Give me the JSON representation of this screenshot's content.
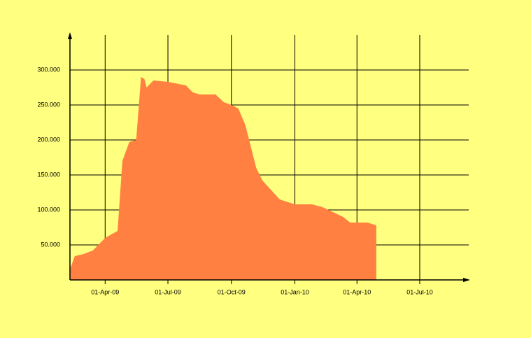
{
  "chart_data": {
    "type": "area",
    "color": "#ff8040",
    "grid": true,
    "x": [
      "2009-02-09",
      "2009-02-16",
      "2009-03-01",
      "2009-03-14",
      "2009-03-22",
      "2009-04-01",
      "2009-04-19",
      "2009-04-26",
      "2009-05-06",
      "2009-05-16",
      "2009-05-23",
      "2009-05-28",
      "2009-05-31",
      "2009-06-10",
      "2009-07-01",
      "2009-07-27",
      "2009-08-06",
      "2009-08-16",
      "2009-09-08",
      "2009-09-20",
      "2009-10-01",
      "2009-10-11",
      "2009-10-21",
      "2009-11-06",
      "2009-11-15",
      "2009-12-10",
      "2010-01-01",
      "2010-01-26",
      "2010-02-10",
      "2010-03-12",
      "2010-03-22",
      "2010-04-16",
      "2010-04-29"
    ],
    "values": [
      15000,
      34000,
      37000,
      42000,
      50000,
      60000,
      70000,
      170000,
      197000,
      200000,
      290000,
      287000,
      275000,
      285000,
      283000,
      278000,
      268000,
      265000,
      265000,
      254000,
      250000,
      245000,
      222000,
      160000,
      142000,
      115000,
      108000,
      108000,
      104000,
      90000,
      82000,
      82000,
      78000
    ],
    "xlim": [
      "2009-02-09",
      "2010-09-10"
    ],
    "xticks": [
      {
        "value": "2009-04-01",
        "label": "01-Apr-09"
      },
      {
        "value": "2009-07-01",
        "label": "01-Jul-09"
      },
      {
        "value": "2009-10-01",
        "label": "01-Oct-09"
      },
      {
        "value": "2010-01-01",
        "label": "01-Jan-10"
      },
      {
        "value": "2010-04-01",
        "label": "01-Apr-10"
      },
      {
        "value": "2010-07-01",
        "label": "01-Jul-10"
      }
    ],
    "ylim": [
      0,
      350000
    ],
    "yticks": [
      {
        "value": 50000,
        "label": "50.000"
      },
      {
        "value": 100000,
        "label": "100.000"
      },
      {
        "value": 150000,
        "label": "150.000"
      },
      {
        "value": 200000,
        "label": "200.000"
      },
      {
        "value": 250000,
        "label": "250.000"
      },
      {
        "value": 300000,
        "label": "300.000"
      }
    ]
  }
}
